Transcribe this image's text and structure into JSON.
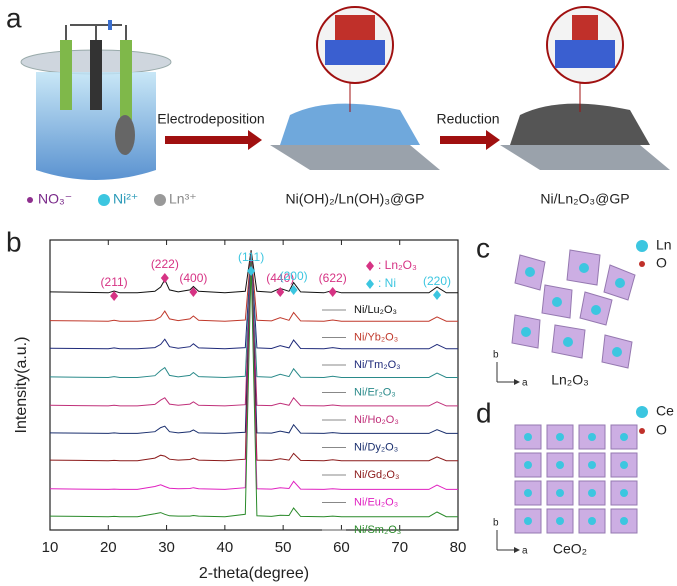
{
  "panel_a": {
    "label": "a",
    "step1": "Electrodeposition",
    "step2": "Reduction",
    "ions": [
      "NO₃⁻",
      "Ni²⁺",
      "Ln³⁺"
    ],
    "product1": "Ni(OH)₂/Ln(OH)₃@GP",
    "product2": "Ni/Ln₂O₃@GP"
  },
  "chart_data": {
    "type": "line",
    "label": "b",
    "x_label": "2-theta(degree)",
    "y_label": "Intensity(a.u.)",
    "x": [
      10,
      15,
      20,
      21,
      22,
      25,
      28,
      29,
      29.7,
      30.5,
      32,
      34,
      34.6,
      35.5,
      40,
      43.5,
      44.5,
      45.5,
      48,
      49.5,
      51,
      51.8,
      53,
      57,
      58.5,
      60,
      65,
      70,
      75,
      76.4,
      78,
      80
    ],
    "series": [
      {
        "name": "Ni/Lu₂O₃",
        "color": "#111111",
        "values": [
          82.1,
          82.0,
          81.8,
          82.4,
          81.8,
          81.8,
          82.3,
          83.8,
          86.3,
          82.8,
          82.1,
          82.8,
          84.0,
          82.3,
          81.8,
          82.3,
          96.5,
          82.3,
          82.0,
          83.3,
          82.3,
          85.3,
          82.1,
          81.8,
          82.6,
          81.8,
          81.8,
          81.8,
          81.8,
          83.8,
          81.8,
          81.8
        ]
      },
      {
        "name": "Ni/Yb₂O₃",
        "color": "#c0392b",
        "values": [
          72.2,
          72.1,
          72.0,
          72.3,
          72.0,
          72.0,
          72.4,
          73.5,
          75.5,
          72.8,
          72.2,
          72.8,
          73.8,
          72.3,
          72.0,
          72.4,
          96.0,
          72.3,
          72.1,
          73.2,
          72.3,
          75.0,
          72.1,
          72.0,
          72.4,
          72.0,
          72.0,
          72.0,
          72.0,
          73.5,
          72.0,
          72.0
        ]
      },
      {
        "name": "Ni/Tm₂O₃",
        "color": "#1f2a7a",
        "values": [
          62.7,
          62.6,
          62.5,
          62.8,
          62.5,
          62.5,
          62.9,
          64.0,
          65.8,
          63.2,
          62.7,
          63.2,
          64.2,
          62.8,
          62.5,
          62.9,
          95.5,
          62.8,
          62.6,
          63.6,
          62.8,
          65.5,
          62.6,
          62.5,
          62.9,
          62.5,
          62.5,
          62.5,
          62.5,
          64.0,
          62.5,
          62.5
        ]
      },
      {
        "name": "Ni/Er₂O₃",
        "color": "#2a8a8a",
        "values": [
          52.8,
          52.7,
          52.6,
          52.9,
          52.6,
          52.6,
          53.2,
          55.0,
          56.0,
          53.3,
          52.8,
          53.3,
          54.3,
          52.9,
          52.6,
          53.0,
          95.0,
          52.9,
          52.7,
          53.7,
          52.9,
          55.6,
          52.7,
          52.6,
          53.0,
          52.6,
          52.6,
          52.6,
          52.6,
          54.1,
          52.6,
          52.6
        ]
      },
      {
        "name": "Ni/Ho₂O₃",
        "color": "#c0307a",
        "values": [
          43.0,
          42.9,
          42.8,
          43.0,
          42.8,
          42.8,
          43.3,
          44.8,
          45.6,
          43.4,
          43.0,
          43.4,
          44.2,
          43.0,
          42.8,
          43.2,
          94.5,
          43.0,
          42.9,
          43.7,
          43.0,
          45.6,
          42.9,
          42.8,
          43.1,
          42.8,
          42.8,
          42.8,
          42.8,
          44.2,
          42.8,
          42.8
        ]
      },
      {
        "name": "Ni/Dy₂O₃",
        "color": "#1a2f6e",
        "values": [
          33.5,
          33.4,
          33.3,
          33.5,
          33.3,
          33.3,
          33.9,
          35.3,
          35.8,
          33.9,
          33.5,
          33.9,
          34.5,
          33.5,
          33.3,
          33.7,
          94.0,
          33.5,
          33.4,
          34.1,
          33.5,
          36.3,
          33.4,
          33.3,
          33.6,
          33.3,
          33.3,
          33.3,
          33.3,
          34.6,
          33.3,
          33.3
        ]
      },
      {
        "name": "Ni/Gd₂O₃",
        "color": "#8b1a1a",
        "values": [
          24.1,
          24.0,
          23.9,
          24.0,
          23.9,
          23.9,
          24.8,
          25.8,
          25.5,
          24.4,
          24.1,
          24.3,
          24.8,
          24.1,
          23.9,
          24.4,
          93.5,
          24.1,
          24.0,
          24.6,
          24.1,
          26.4,
          24.0,
          23.9,
          24.2,
          23.9,
          23.9,
          23.9,
          23.9,
          25.2,
          23.9,
          23.9
        ]
      },
      {
        "name": "Ni/Eu₂O₃",
        "color": "#e020c0",
        "values": [
          14.2,
          14.1,
          14.0,
          14.1,
          14.0,
          14.0,
          15.0,
          15.6,
          15.0,
          14.4,
          14.2,
          14.3,
          14.6,
          14.2,
          14.0,
          14.6,
          93.0,
          14.2,
          14.1,
          14.6,
          14.3,
          16.8,
          14.1,
          14.0,
          14.2,
          14.0,
          14.0,
          14.0,
          14.0,
          15.5,
          14.0,
          14.0
        ]
      },
      {
        "name": "Ni/Sm₂O₃",
        "color": "#2a8a2a",
        "values": [
          4.8,
          4.7,
          4.6,
          4.7,
          4.6,
          4.6,
          5.6,
          6.0,
          5.4,
          4.9,
          4.8,
          4.8,
          5.0,
          4.8,
          4.6,
          5.4,
          92.5,
          4.9,
          4.7,
          5.1,
          5.0,
          7.6,
          4.7,
          4.6,
          4.8,
          4.6,
          4.6,
          4.6,
          4.6,
          6.2,
          4.6,
          4.6
        ]
      }
    ],
    "xlim": [
      10,
      80
    ],
    "xticks": [
      10,
      20,
      30,
      40,
      50,
      60,
      70,
      80
    ],
    "ylim": [
      0,
      100
    ],
    "phase_legend": [
      {
        "name": ": Ln₂O₃",
        "color": "#d63384"
      },
      {
        "name": ": Ni",
        "color": "#3cc6e0"
      }
    ],
    "annotations": [
      {
        "text": "(211)",
        "x": 21,
        "color": "#d63384"
      },
      {
        "text": "(222)",
        "x": 29.7,
        "color": "#d63384"
      },
      {
        "text": "(400)",
        "x": 34.6,
        "color": "#d63384"
      },
      {
        "text": "(111)",
        "x": 44.5,
        "color": "#3cc6e0"
      },
      {
        "text": "(440)",
        "x": 49.5,
        "color": "#d63384"
      },
      {
        "text": "(200)",
        "x": 51.8,
        "color": "#3cc6e0"
      },
      {
        "text": "(622)",
        "x": 58.5,
        "color": "#d63384"
      },
      {
        "text": "(220)",
        "x": 76.4,
        "color": "#3cc6e0"
      }
    ]
  },
  "panel_c": {
    "label": "c",
    "legend": [
      "Ln",
      "O"
    ],
    "axes": [
      "b",
      "a"
    ],
    "name": "Ln₂O₃"
  },
  "panel_d": {
    "label": "d",
    "legend": [
      "Ce",
      "O"
    ],
    "axes": [
      "b",
      "a"
    ],
    "name": "CeO₂"
  }
}
